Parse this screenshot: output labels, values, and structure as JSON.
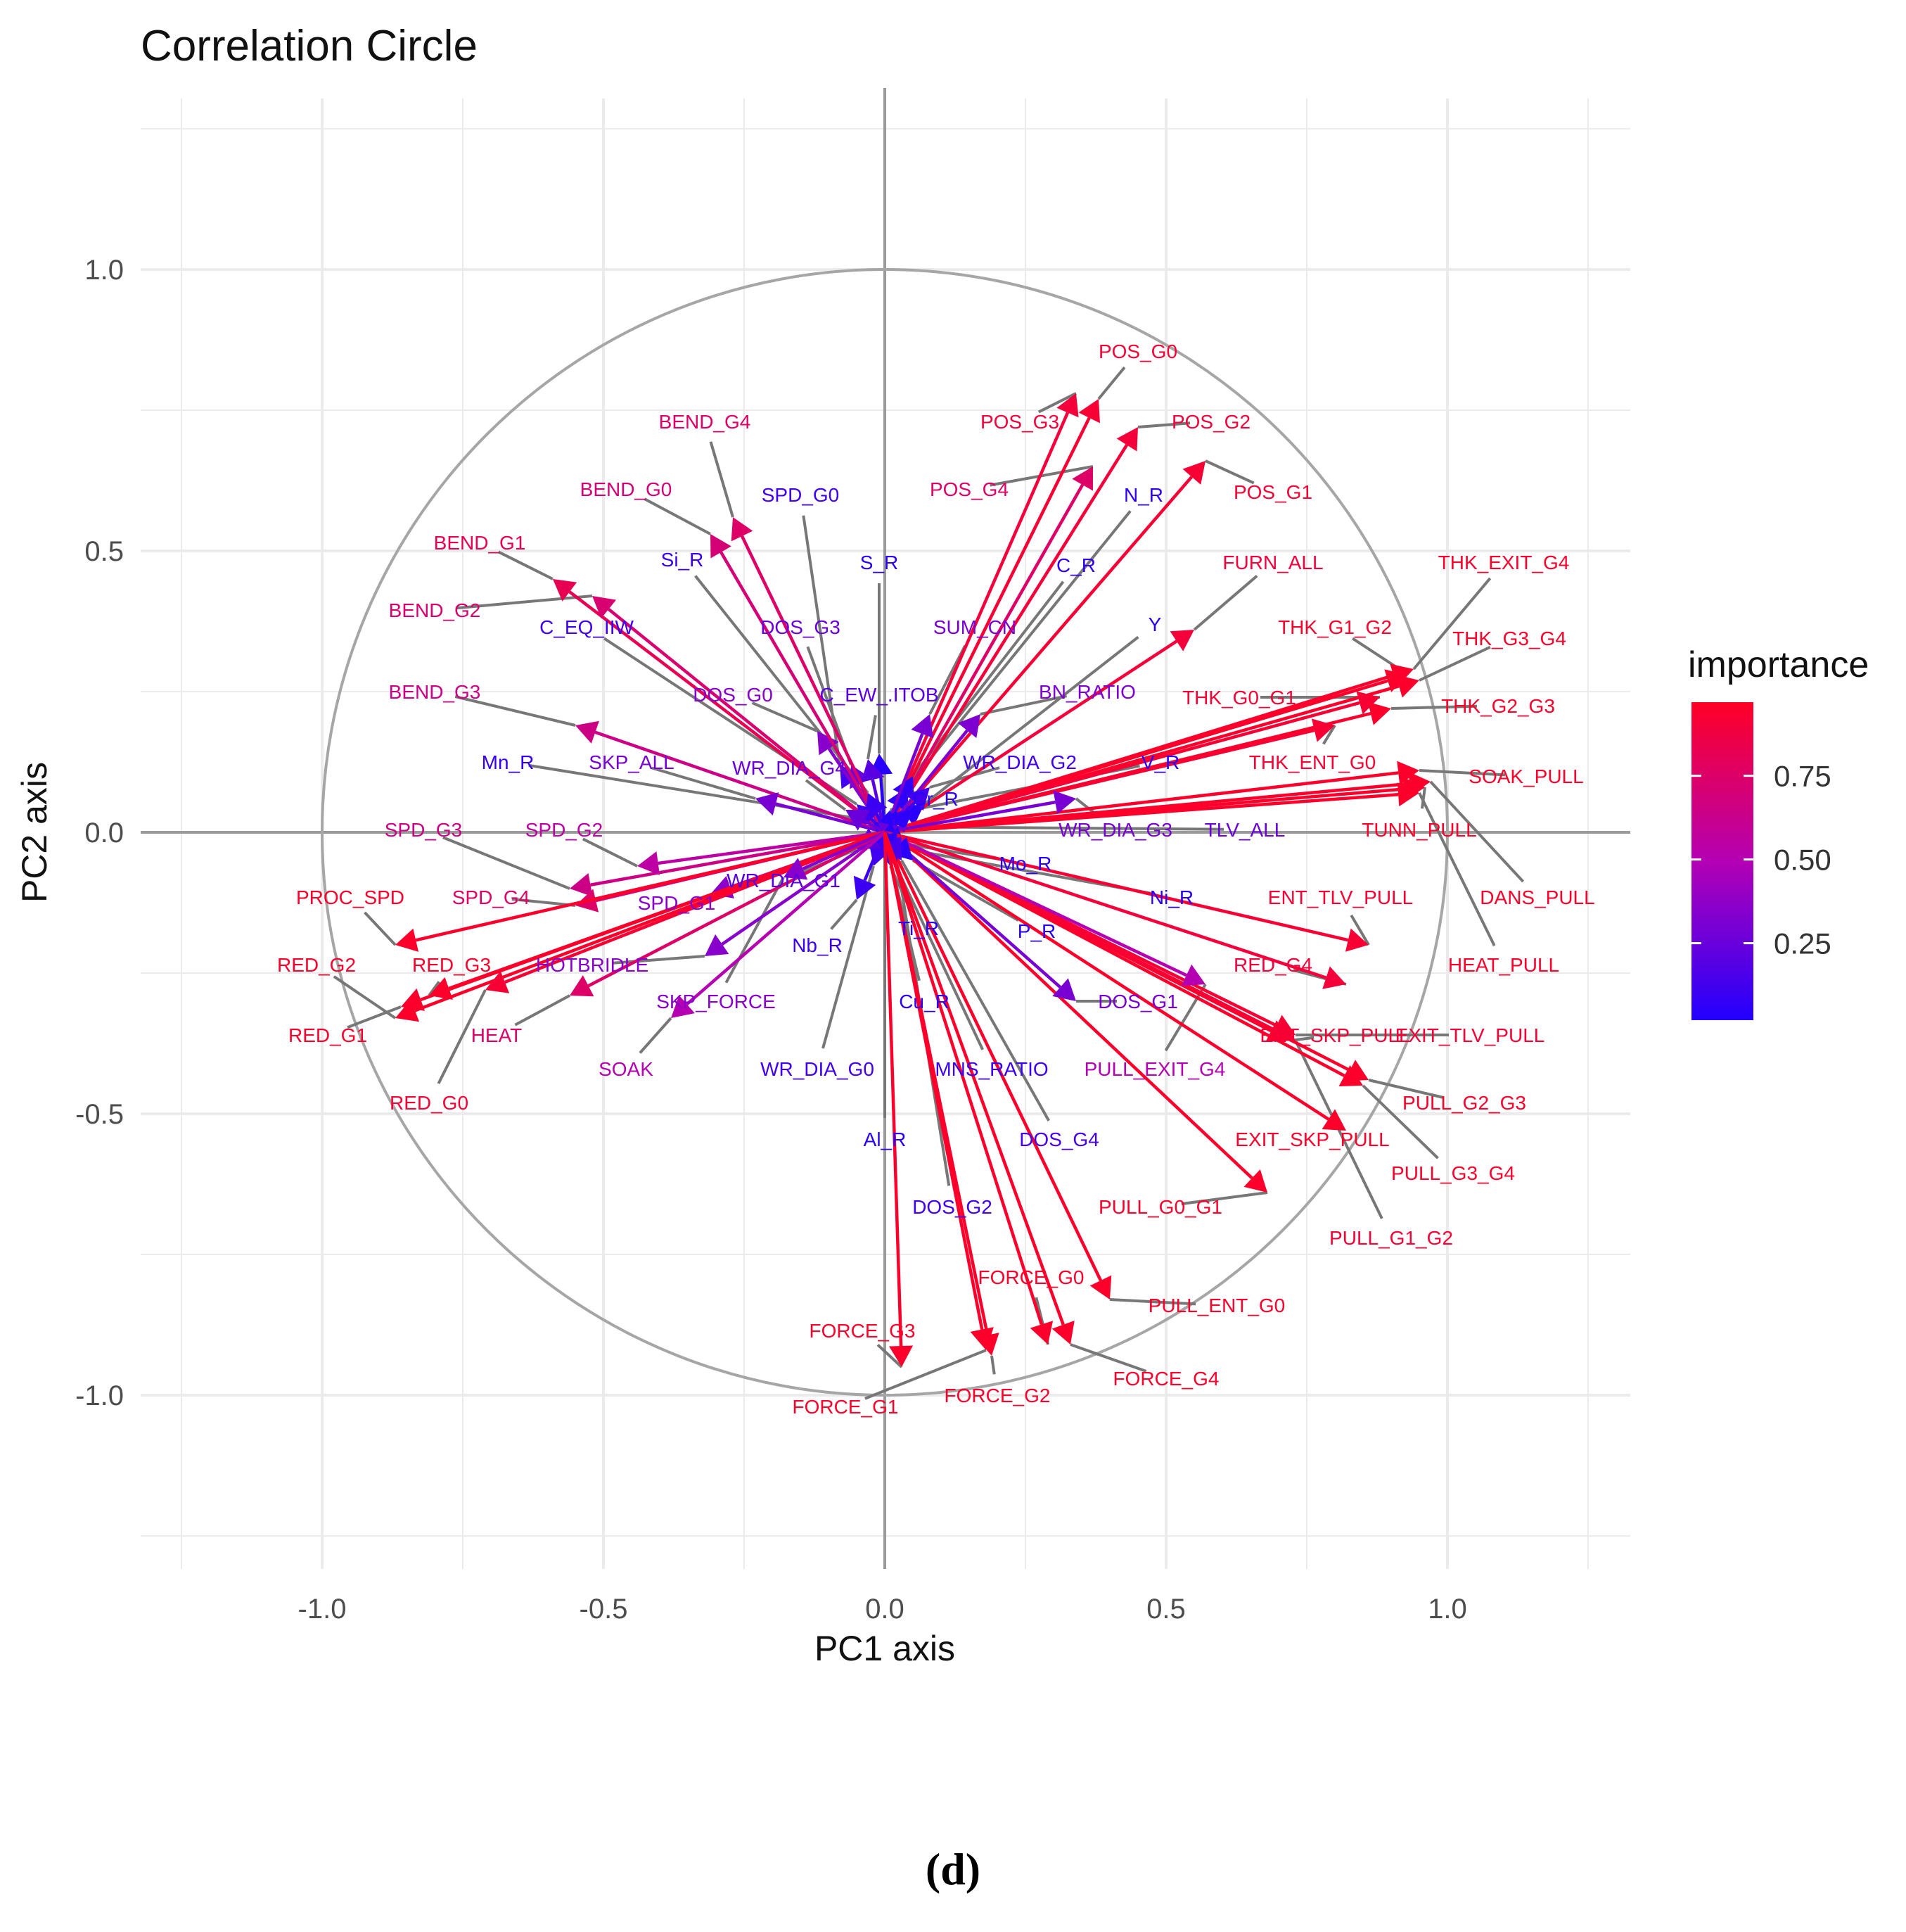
{
  "panel_label": "(d)",
  "chart_data": {
    "type": "scatter",
    "subtype": "correlation-circle-biplot",
    "title": "Correlation Circle",
    "xlabel": "PC1 axis",
    "ylabel": "PC2 axis",
    "xlim": [
      -1.25,
      1.25
    ],
    "ylim": [
      -1.25,
      1.25
    ],
    "xticks": [
      -1.0,
      -0.5,
      0.0,
      0.5,
      1.0
    ],
    "yticks": [
      -1.0,
      -0.5,
      0.0,
      0.5,
      1.0
    ],
    "xtick_labels": [
      "-1.0",
      "-0.5",
      "0.0",
      "0.5",
      "1.0"
    ],
    "ytick_labels": [
      "-1.0",
      "-0.5",
      "0.0",
      "0.5",
      "1.0"
    ],
    "grid": true,
    "unit_circle": true,
    "legend": {
      "title": "importance",
      "type": "colorbar",
      "range": [
        0.02,
        0.97
      ],
      "ticks": [
        0.25,
        0.5,
        0.75
      ],
      "tick_labels": [
        "0.25",
        "0.50",
        "0.75"
      ],
      "low_color": "#2200ff",
      "mid_color": "#b400b4",
      "high_color": "#ff0025",
      "placement": "right"
    },
    "variables": [
      {
        "name": "POS_G0",
        "x": 0.38,
        "y": 0.77,
        "importance": 0.92,
        "label_x": 0.45,
        "label_y": 0.855
      },
      {
        "name": "POS_G3",
        "x": 0.34,
        "y": 0.78,
        "importance": 0.9,
        "label_x": 0.24,
        "label_y": 0.73
      },
      {
        "name": "POS_G2",
        "x": 0.45,
        "y": 0.72,
        "importance": 0.9,
        "label_x": 0.58,
        "label_y": 0.73
      },
      {
        "name": "POS_G4",
        "x": 0.37,
        "y": 0.65,
        "importance": 0.75,
        "label_x": 0.15,
        "label_y": 0.61
      },
      {
        "name": "POS_G1",
        "x": 0.57,
        "y": 0.66,
        "importance": 0.92,
        "label_x": 0.69,
        "label_y": 0.605
      },
      {
        "name": "N_R",
        "x": 0.04,
        "y": 0.08,
        "importance": 0.06,
        "label_x": 0.46,
        "label_y": 0.6
      },
      {
        "name": "C_R",
        "x": 0.05,
        "y": 0.1,
        "importance": 0.07,
        "label_x": 0.34,
        "label_y": 0.475
      },
      {
        "name": "FURN_ALL",
        "x": 0.55,
        "y": 0.36,
        "importance": 0.9,
        "label_x": 0.69,
        "label_y": 0.48
      },
      {
        "name": "Y",
        "x": 0.07,
        "y": 0.05,
        "importance": 0.05,
        "label_x": 0.48,
        "label_y": 0.37
      },
      {
        "name": "SUM_CN",
        "x": 0.08,
        "y": 0.21,
        "importance": 0.3,
        "label_x": 0.16,
        "label_y": 0.365
      },
      {
        "name": "BN_RATIO",
        "x": 0.17,
        "y": 0.21,
        "importance": 0.32,
        "label_x": 0.36,
        "label_y": 0.25
      },
      {
        "name": "S_R",
        "x": -0.01,
        "y": 0.14,
        "importance": 0.05,
        "label_x": -0.01,
        "label_y": 0.48
      },
      {
        "name": "SPD_G0",
        "x": -0.08,
        "y": 0.12,
        "importance": 0.12,
        "label_x": -0.15,
        "label_y": 0.6
      },
      {
        "name": "DOS_G3",
        "x": -0.06,
        "y": 0.12,
        "importance": 0.25,
        "label_x": -0.15,
        "label_y": 0.365
      },
      {
        "name": "DOS_G0",
        "x": -0.12,
        "y": 0.18,
        "importance": 0.35,
        "label_x": -0.27,
        "label_y": 0.245
      },
      {
        "name": "C_EW_.ITOB",
        "x": -0.03,
        "y": 0.13,
        "importance": 0.2,
        "label_x": -0.01,
        "label_y": 0.245
      },
      {
        "name": "Cr_R",
        "x": 0.01,
        "y": 0.04,
        "importance": 0.05,
        "label_x": 0.09,
        "label_y": 0.06
      },
      {
        "name": "BEND_G4",
        "x": -0.27,
        "y": 0.56,
        "importance": 0.75,
        "label_x": -0.32,
        "label_y": 0.73
      },
      {
        "name": "BEND_G0",
        "x": -0.31,
        "y": 0.53,
        "importance": 0.7,
        "label_x": -0.46,
        "label_y": 0.61
      },
      {
        "name": "Si_R",
        "x": -0.03,
        "y": 0.07,
        "importance": 0.1,
        "label_x": -0.36,
        "label_y": 0.485
      },
      {
        "name": "BEND_G1",
        "x": -0.59,
        "y": 0.45,
        "importance": 0.82,
        "label_x": -0.72,
        "label_y": 0.515
      },
      {
        "name": "BEND_G2",
        "x": -0.52,
        "y": 0.42,
        "importance": 0.72,
        "label_x": -0.8,
        "label_y": 0.395
      },
      {
        "name": "C_EQ_IIW",
        "x": -0.05,
        "y": 0.05,
        "importance": 0.12,
        "label_x": -0.53,
        "label_y": 0.365
      },
      {
        "name": "BEND_G3",
        "x": -0.55,
        "y": 0.19,
        "importance": 0.65,
        "label_x": -0.8,
        "label_y": 0.25
      },
      {
        "name": "SKP_ALL",
        "x": -0.23,
        "y": 0.06,
        "importance": 0.3,
        "label_x": -0.45,
        "label_y": 0.125
      },
      {
        "name": "Mn_R",
        "x": -0.02,
        "y": 0.02,
        "importance": 0.08,
        "label_x": -0.67,
        "label_y": 0.125
      },
      {
        "name": "WR_DIA_G4",
        "x": -0.07,
        "y": 0.04,
        "importance": 0.25,
        "label_x": -0.17,
        "label_y": 0.115
      },
      {
        "name": "THK_EXIT_G4",
        "x": 0.94,
        "y": 0.29,
        "importance": 0.95,
        "label_x": 1.1,
        "label_y": 0.48
      },
      {
        "name": "THK_G1_G2",
        "x": 0.93,
        "y": 0.28,
        "importance": 0.95,
        "label_x": 0.8,
        "label_y": 0.365
      },
      {
        "name": "THK_G3_G4",
        "x": 0.95,
        "y": 0.27,
        "importance": 0.95,
        "label_x": 1.11,
        "label_y": 0.345
      },
      {
        "name": "THK_G0_G1",
        "x": 0.88,
        "y": 0.24,
        "importance": 0.92,
        "label_x": 0.63,
        "label_y": 0.24
      },
      {
        "name": "THK_G2_G3",
        "x": 0.9,
        "y": 0.22,
        "importance": 0.95,
        "label_x": 1.09,
        "label_y": 0.225
      },
      {
        "name": "THK_ENT_G0",
        "x": 0.8,
        "y": 0.19,
        "importance": 0.92,
        "label_x": 0.76,
        "label_y": 0.125
      },
      {
        "name": "SOAK_PULL",
        "x": 0.95,
        "y": 0.11,
        "importance": 0.95,
        "label_x": 1.14,
        "label_y": 0.1
      },
      {
        "name": "TUNN_PULL",
        "x": 0.96,
        "y": 0.08,
        "importance": 0.95,
        "label_x": 0.95,
        "label_y": 0.005
      },
      {
        "name": "DANS_PULL",
        "x": 0.97,
        "y": 0.09,
        "importance": 0.95,
        "label_x": 1.16,
        "label_y": -0.115
      },
      {
        "name": "HEAT_PULL",
        "x": 0.95,
        "y": 0.07,
        "importance": 0.95,
        "label_x": 1.1,
        "label_y": -0.235
      },
      {
        "name": "WR_DIA_G2",
        "x": 0.08,
        "y": 0.08,
        "importance": 0.12,
        "label_x": 0.24,
        "label_y": 0.125
      },
      {
        "name": "V_R",
        "x": 0.05,
        "y": 0.04,
        "importance": 0.06,
        "label_x": 0.49,
        "label_y": 0.125
      },
      {
        "name": "WR_DIA_G3",
        "x": 0.34,
        "y": 0.06,
        "importance": 0.3,
        "label_x": 0.41,
        "label_y": 0.005
      },
      {
        "name": "TLV_ALL",
        "x": 0.03,
        "y": 0.01,
        "importance": 0.25,
        "label_x": 0.64,
        "label_y": 0.005
      },
      {
        "name": "Mo_R",
        "x": 0.03,
        "y": -0.02,
        "importance": 0.05,
        "label_x": 0.25,
        "label_y": -0.055
      },
      {
        "name": "Ni_R",
        "x": 0.04,
        "y": -0.03,
        "importance": 0.05,
        "label_x": 0.51,
        "label_y": -0.115
      },
      {
        "name": "ENT_TLV_PULL",
        "x": 0.86,
        "y": -0.2,
        "importance": 0.92,
        "label_x": 0.81,
        "label_y": -0.115
      },
      {
        "name": "RED_G4",
        "x": 0.82,
        "y": -0.27,
        "importance": 0.9,
        "label_x": 0.69,
        "label_y": -0.235
      },
      {
        "name": "ENT_SKP_PULL",
        "x": 0.72,
        "y": -0.37,
        "importance": 0.92,
        "label_x": 0.8,
        "label_y": -0.36
      },
      {
        "name": "EXIT_TLV_PULL",
        "x": 0.73,
        "y": -0.36,
        "importance": 0.92,
        "label_x": 1.04,
        "label_y": -0.36
      },
      {
        "name": "PULL_G2_G3",
        "x": 0.86,
        "y": -0.44,
        "importance": 0.95,
        "label_x": 1.03,
        "label_y": -0.48
      },
      {
        "name": "PULL_G3_G4",
        "x": 0.85,
        "y": -0.45,
        "importance": 0.95,
        "label_x": 1.01,
        "label_y": -0.605
      },
      {
        "name": "EXIT_SKP_PULL",
        "x": 0.82,
        "y": -0.53,
        "importance": 0.95,
        "label_x": 0.76,
        "label_y": -0.545
      },
      {
        "name": "PULL_G1_G2",
        "x": 0.73,
        "y": -0.37,
        "importance": 0.92,
        "label_x": 0.9,
        "label_y": -0.72
      },
      {
        "name": "PULL_G0_G1",
        "x": 0.68,
        "y": -0.64,
        "importance": 0.95,
        "label_x": 0.49,
        "label_y": -0.665
      },
      {
        "name": "PULL_ENT_G0",
        "x": 0.4,
        "y": -0.83,
        "importance": 0.95,
        "label_x": 0.59,
        "label_y": -0.84
      },
      {
        "name": "DOS_G1",
        "x": 0.34,
        "y": -0.3,
        "importance": 0.3,
        "label_x": 0.45,
        "label_y": -0.3
      },
      {
        "name": "PULL_EXIT_G4",
        "x": 0.57,
        "y": -0.27,
        "importance": 0.5,
        "label_x": 0.48,
        "label_y": -0.42
      },
      {
        "name": "P_R",
        "x": 0.05,
        "y": -0.05,
        "importance": 0.05,
        "label_x": 0.27,
        "label_y": -0.175
      },
      {
        "name": "Ti_R",
        "x": 0.01,
        "y": -0.06,
        "importance": 0.05,
        "label_x": 0.06,
        "label_y": -0.17
      },
      {
        "name": "Cu_R",
        "x": 0.01,
        "y": -0.05,
        "importance": 0.05,
        "label_x": 0.07,
        "label_y": -0.3
      },
      {
        "name": "MNS_RATIO",
        "x": 0.02,
        "y": -0.06,
        "importance": 0.1,
        "label_x": 0.19,
        "label_y": -0.42
      },
      {
        "name": "DOS_G4",
        "x": 0.03,
        "y": -0.05,
        "importance": 0.15,
        "label_x": 0.31,
        "label_y": -0.545
      },
      {
        "name": "DOS_G2",
        "x": 0.02,
        "y": -0.04,
        "importance": 0.12,
        "label_x": 0.12,
        "label_y": -0.665
      },
      {
        "name": "Al_R",
        "x": 0.0,
        "y": -0.04,
        "importance": 0.05,
        "label_x": 0.0,
        "label_y": -0.545
      },
      {
        "name": "Nb_R",
        "x": -0.05,
        "y": -0.12,
        "importance": 0.1,
        "label_x": -0.12,
        "label_y": -0.2
      },
      {
        "name": "WR_DIA_G0",
        "x": -0.02,
        "y": -0.06,
        "importance": 0.12,
        "label_x": -0.12,
        "label_y": -0.42
      },
      {
        "name": "WR_DIA_G1",
        "x": -0.05,
        "y": -0.03,
        "importance": 0.2,
        "label_x": -0.18,
        "label_y": -0.085
      },
      {
        "name": "SPD_G1",
        "x": -0.31,
        "y": -0.11,
        "importance": 0.35,
        "label_x": -0.37,
        "label_y": -0.125
      },
      {
        "name": "SPD_G3",
        "x": -0.56,
        "y": -0.1,
        "importance": 0.65,
        "label_x": -0.82,
        "label_y": 0.005
      },
      {
        "name": "SPD_G2",
        "x": -0.44,
        "y": -0.06,
        "importance": 0.55,
        "label_x": -0.57,
        "label_y": 0.005
      },
      {
        "name": "SPD_G4",
        "x": -0.55,
        "y": -0.13,
        "importance": 0.75,
        "label_x": -0.7,
        "label_y": -0.115
      },
      {
        "name": "PROC_SPD",
        "x": -0.87,
        "y": -0.2,
        "importance": 0.95,
        "label_x": -0.95,
        "label_y": -0.115
      },
      {
        "name": "RED_G2",
        "x": -0.87,
        "y": -0.33,
        "importance": 0.95,
        "label_x": -1.01,
        "label_y": -0.235
      },
      {
        "name": "RED_G3",
        "x": -0.81,
        "y": -0.29,
        "importance": 0.95,
        "label_x": -0.77,
        "label_y": -0.235
      },
      {
        "name": "RED_G1",
        "x": -0.86,
        "y": -0.31,
        "importance": 0.95,
        "label_x": -0.99,
        "label_y": -0.36
      },
      {
        "name": "RED_G0",
        "x": -0.71,
        "y": -0.28,
        "importance": 0.92,
        "label_x": -0.81,
        "label_y": -0.48
      },
      {
        "name": "HOTBRIDLE",
        "x": -0.32,
        "y": -0.22,
        "importance": 0.35,
        "label_x": -0.52,
        "label_y": -0.235
      },
      {
        "name": "HEAT",
        "x": -0.56,
        "y": -0.29,
        "importance": 0.75,
        "label_x": -0.69,
        "label_y": -0.36
      },
      {
        "name": "SKP_FORCE",
        "x": -0.18,
        "y": -0.08,
        "importance": 0.35,
        "label_x": -0.3,
        "label_y": -0.3
      },
      {
        "name": "SOAK",
        "x": -0.38,
        "y": -0.33,
        "importance": 0.5,
        "label_x": -0.46,
        "label_y": -0.42
      },
      {
        "name": "FORCE_G0",
        "x": 0.29,
        "y": -0.91,
        "importance": 0.95,
        "label_x": 0.26,
        "label_y": -0.79
      },
      {
        "name": "FORCE_G3",
        "x": 0.03,
        "y": -0.95,
        "importance": 0.95,
        "label_x": -0.04,
        "label_y": -0.885
      },
      {
        "name": "FORCE_G2",
        "x": 0.19,
        "y": -0.93,
        "importance": 0.95,
        "label_x": 0.2,
        "label_y": -1.0
      },
      {
        "name": "FORCE_G1",
        "x": 0.18,
        "y": -0.92,
        "importance": 0.95,
        "label_x": -0.07,
        "label_y": -1.02
      },
      {
        "name": "FORCE_G4",
        "x": 0.33,
        "y": -0.91,
        "importance": 0.95,
        "label_x": 0.5,
        "label_y": -0.97
      }
    ]
  }
}
